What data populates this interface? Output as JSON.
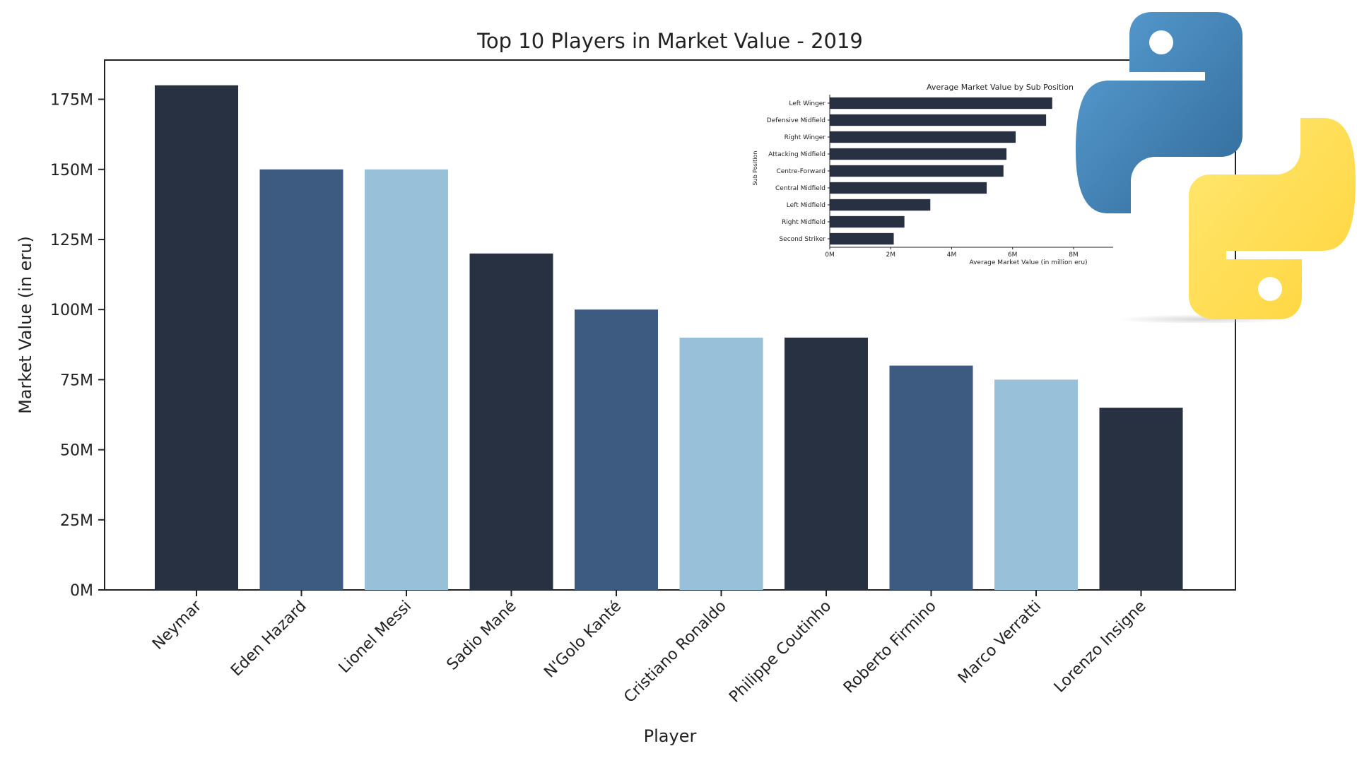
{
  "chart_data": [
    {
      "type": "bar",
      "title": "Top 10 Players in Market Value - 2019",
      "xlabel": "Player",
      "ylabel": "Market Value (in eru)",
      "categories": [
        "Neymar",
        "Eden Hazard",
        "Lionel Messi",
        "Sadio Mané",
        "N'Golo Kanté",
        "Cristiano Ronaldo",
        "Philippe Coutinho",
        "Roberto Firmino",
        "Marco Verratti",
        "Lorenzo Insigne"
      ],
      "values": [
        180000000,
        150000000,
        150000000,
        120000000,
        100000000,
        90000000,
        90000000,
        80000000,
        75000000,
        65000000
      ],
      "bar_colors": [
        "#283142",
        "#3d5a80",
        "#98c1d9",
        "#283142",
        "#3d5a80",
        "#98c1d9",
        "#283142",
        "#3d5a80",
        "#98c1d9",
        "#283142"
      ],
      "yticks": [
        "0M",
        "25M",
        "50M",
        "75M",
        "100M",
        "125M",
        "150M",
        "175M"
      ],
      "ytick_values": [
        0,
        25000000,
        50000000,
        75000000,
        100000000,
        125000000,
        150000000,
        175000000
      ],
      "ylim": [
        0,
        189000000
      ],
      "grid": false
    },
    {
      "type": "bar",
      "orientation": "horizontal",
      "title": "Average Market Value by Sub Position",
      "xlabel": "Average Market Value (in million eru)",
      "ylabel": "Sub Position",
      "categories": [
        "Left Winger",
        "Defensive Midfield",
        "Right Winger",
        "Attacking Midfield",
        "Centre-Forward",
        "Central Midfield",
        "Left Midfield",
        "Right Midfield",
        "Second Striker"
      ],
      "values": [
        7300000,
        7100000,
        6100000,
        5800000,
        5700000,
        5150000,
        3300000,
        2450000,
        2100000
      ],
      "bar_color": "#283142",
      "xticks": [
        "0M",
        "2M",
        "4M",
        "6M",
        "8M"
      ],
      "xtick_values": [
        0,
        2000000,
        4000000,
        6000000,
        8000000
      ],
      "grid": false
    }
  ],
  "logo": {
    "name": "python-logo",
    "colors": {
      "blue": "#3776ab",
      "yellow": "#ffd43b"
    }
  }
}
